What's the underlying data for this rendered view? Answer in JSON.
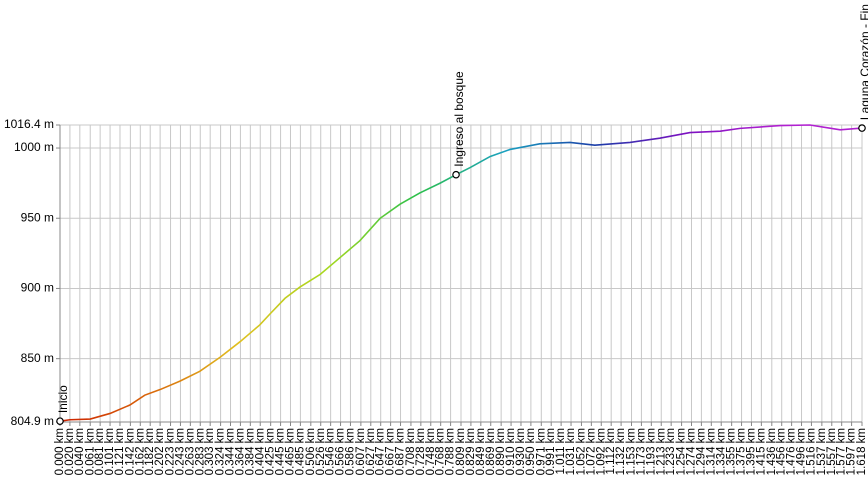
{
  "chart_data": {
    "type": "line",
    "x": [
      0,
      0.02,
      0.061,
      0.101,
      0.141,
      0.171,
      0.202,
      0.242,
      0.282,
      0.323,
      0.363,
      0.403,
      0.424,
      0.454,
      0.484,
      0.525,
      0.565,
      0.605,
      0.646,
      0.686,
      0.726,
      0.767,
      0.799,
      0.827,
      0.868,
      0.908,
      0.968,
      1.029,
      1.079,
      1.15,
      1.21,
      1.271,
      1.332,
      1.372,
      1.453,
      1.513,
      1.574,
      1.618
    ],
    "series": [
      {
        "values": [
          805.5,
          806.5,
          807,
          811,
          817,
          824,
          828,
          834,
          841,
          851,
          862,
          874,
          882,
          893,
          901,
          910,
          922,
          934,
          950,
          960,
          968,
          975,
          981,
          986,
          994,
          999,
          1003,
          1004,
          1002,
          1004,
          1007,
          1011,
          1012,
          1014,
          1016,
          1016.4,
          1013,
          1014.2
        ]
      }
    ],
    "colors": [
      "#cc1f00",
      "#d9660a",
      "#e0c020",
      "#a6d81e",
      "#2cc04a",
      "#1aa0c0",
      "#1a3ea8",
      "#7a10c0",
      "#b020d0",
      "#b020d0"
    ],
    "annotations": [
      {
        "label": "Inicio",
        "x": 0,
        "y": 805.5
      },
      {
        "label": "Ingreso al bosque",
        "x": 0.799,
        "y": 981
      },
      {
        "label": "Laguna Corazón - Fin",
        "x": 1.618,
        "y": 1014.2
      }
    ],
    "xlim": [
      0,
      1.618
    ],
    "ylim": [
      804.9,
      1016.4
    ],
    "yticks": [
      {
        "value": 804.9,
        "label": "804.9 m"
      },
      {
        "value": 850,
        "label": "850 m"
      },
      {
        "value": 900,
        "label": "900 m"
      },
      {
        "value": 950,
        "label": "950 m"
      },
      {
        "value": 1000,
        "label": "1000 m"
      },
      {
        "value": 1016.4,
        "label": "1016.4 m"
      }
    ],
    "xticks": [
      {
        "value": 0,
        "label": "0.000 km"
      },
      {
        "value": 0.02,
        "label": "0.020 km"
      },
      {
        "value": 0.04,
        "label": "0.040 km"
      },
      {
        "value": 0.061,
        "label": "0.061 km"
      },
      {
        "value": 0.081,
        "label": "0.081 km"
      },
      {
        "value": 0.101,
        "label": "0.101 km"
      },
      {
        "value": 0.121,
        "label": "0.121 km"
      },
      {
        "value": 0.142,
        "label": "0.142 km"
      },
      {
        "value": 0.162,
        "label": "0.162 km"
      },
      {
        "value": 0.182,
        "label": "0.182 km"
      },
      {
        "value": 0.202,
        "label": "0.202 km"
      },
      {
        "value": 0.223,
        "label": "0.223 km"
      },
      {
        "value": 0.243,
        "label": "0.243 km"
      },
      {
        "value": 0.263,
        "label": "0.263 km"
      },
      {
        "value": 0.283,
        "label": "0.283 km"
      },
      {
        "value": 0.303,
        "label": "0.303 km"
      },
      {
        "value": 0.324,
        "label": "0.324 km"
      },
      {
        "value": 0.344,
        "label": "0.344 km"
      },
      {
        "value": 0.364,
        "label": "0.364 km"
      },
      {
        "value": 0.384,
        "label": "0.384 km"
      },
      {
        "value": 0.404,
        "label": "0.404 km"
      },
      {
        "value": 0.425,
        "label": "0.425 km"
      },
      {
        "value": 0.445,
        "label": "0.445 km"
      },
      {
        "value": 0.465,
        "label": "0.465 km"
      },
      {
        "value": 0.485,
        "label": "0.485 km"
      },
      {
        "value": 0.506,
        "label": "0.506 km"
      },
      {
        "value": 0.526,
        "label": "0.526 km"
      },
      {
        "value": 0.546,
        "label": "0.546 km"
      },
      {
        "value": 0.566,
        "label": "0.566 km"
      },
      {
        "value": 0.586,
        "label": "0.586 km"
      },
      {
        "value": 0.607,
        "label": "0.607 km"
      },
      {
        "value": 0.627,
        "label": "0.627 km"
      },
      {
        "value": 0.647,
        "label": "0.647 km"
      },
      {
        "value": 0.667,
        "label": "0.667 km"
      },
      {
        "value": 0.687,
        "label": "0.687 km"
      },
      {
        "value": 0.708,
        "label": "0.708 km"
      },
      {
        "value": 0.728,
        "label": "0.728 km"
      },
      {
        "value": 0.748,
        "label": "0.748 km"
      },
      {
        "value": 0.768,
        "label": "0.768 km"
      },
      {
        "value": 0.788,
        "label": "0.788 km"
      },
      {
        "value": 0.809,
        "label": "0.809 km"
      },
      {
        "value": 0.829,
        "label": "0.829 km"
      },
      {
        "value": 0.849,
        "label": "0.849 km"
      },
      {
        "value": 0.869,
        "label": "0.869 km"
      },
      {
        "value": 0.89,
        "label": "0.890 km"
      },
      {
        "value": 0.91,
        "label": "0.910 km"
      },
      {
        "value": 0.93,
        "label": "0.930 km"
      },
      {
        "value": 0.95,
        "label": "0.950 km"
      },
      {
        "value": 0.971,
        "label": "0.971 km"
      },
      {
        "value": 0.991,
        "label": "0.991 km"
      },
      {
        "value": 1.011,
        "label": "1.011 km"
      },
      {
        "value": 1.031,
        "label": "1.031 km"
      },
      {
        "value": 1.052,
        "label": "1.052 km"
      },
      {
        "value": 1.072,
        "label": "1.072 km"
      },
      {
        "value": 1.092,
        "label": "1.092 km"
      },
      {
        "value": 1.112,
        "label": "1.112 km"
      },
      {
        "value": 1.132,
        "label": "1.132 km"
      },
      {
        "value": 1.153,
        "label": "1.153 km"
      },
      {
        "value": 1.173,
        "label": "1.173 km"
      },
      {
        "value": 1.193,
        "label": "1.193 km"
      },
      {
        "value": 1.213,
        "label": "1.213 km"
      },
      {
        "value": 1.233,
        "label": "1.233 km"
      },
      {
        "value": 1.254,
        "label": "1.254 km"
      },
      {
        "value": 1.274,
        "label": "1.274 km"
      },
      {
        "value": 1.294,
        "label": "1.294 km"
      },
      {
        "value": 1.314,
        "label": "1.314 km"
      },
      {
        "value": 1.334,
        "label": "1.334 km"
      },
      {
        "value": 1.355,
        "label": "1.355 km"
      },
      {
        "value": 1.375,
        "label": "1.375 km"
      },
      {
        "value": 1.395,
        "label": "1.395 km"
      },
      {
        "value": 1.415,
        "label": "1.415 km"
      },
      {
        "value": 1.436,
        "label": "1.436 km"
      },
      {
        "value": 1.456,
        "label": "1.456 km"
      },
      {
        "value": 1.476,
        "label": "1.476 km"
      },
      {
        "value": 1.496,
        "label": "1.496 km"
      },
      {
        "value": 1.516,
        "label": "1.516 km"
      },
      {
        "value": 1.537,
        "label": "1.537 km"
      },
      {
        "value": 1.557,
        "label": "1.557 km"
      },
      {
        "value": 1.577,
        "label": "1.577 km"
      },
      {
        "value": 1.597,
        "label": "1.597 km"
      },
      {
        "value": 1.618,
        "label": "1.618 km"
      }
    ],
    "grid": true
  }
}
